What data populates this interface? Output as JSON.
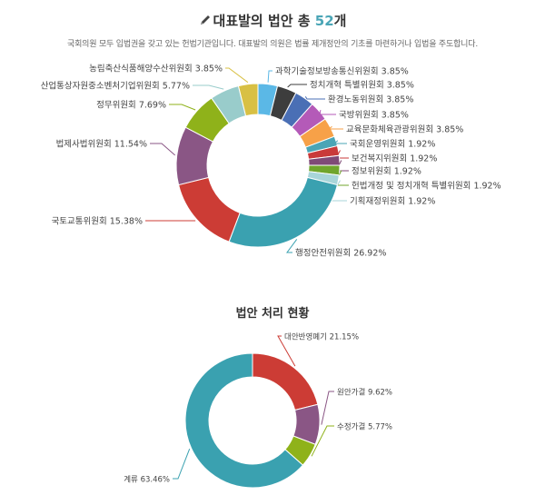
{
  "header": {
    "title_prefix": "대표발의 법안 총 ",
    "title_count": "52",
    "title_suffix": "개",
    "subtitle": "국회의원 모두 입법권을 갖고 있는 헌법기관입니다. 대표발의 의원은 법률 제개정안의 기초를 마련하거나 입법을 주도합니다.",
    "icon": "pencil-icon"
  },
  "chart_data": [
    {
      "type": "pie",
      "categories": [
        "과학기술정보방송통신위원회",
        "정치개혁 특별위원회",
        "환경노동위원회",
        "국방위원회",
        "교육문화체육관광위원회",
        "국회운영위원회",
        "보건복지위원회",
        "정보위원회",
        "헌법개정 및 정치개혁 특별위원회",
        "기획재정위원회",
        "행정안전위원회",
        "국토교통위원회",
        "법제사법위원회",
        "정무위원회",
        "산업통상자원중소벤처기업위원회",
        "농림축산식품해양수산위원회"
      ],
      "values": [
        3.85,
        3.85,
        3.85,
        3.85,
        3.85,
        1.92,
        1.92,
        1.92,
        1.92,
        1.92,
        26.92,
        15.38,
        11.54,
        7.69,
        5.77,
        3.85
      ],
      "labels": [
        "과학기술정보방송통신위원회 3.85%",
        "정치개혁 특별위원회 3.85%",
        "환경노동위원회 3.85%",
        "국방위원회 3.85%",
        "교육문화체육관광위원회 3.85%",
        "국회운영위원회 1.92%",
        "보건복지위원회 1.92%",
        "정보위원회 1.92%",
        "헌법개정 및 정치개혁 특별위원회 1.92%",
        "기획재정위원회 1.92%",
        "행정안전위원회 26.92%",
        "국토교통위원회 15.38%",
        "법제사법위원회 11.54%",
        "정무위원회 7.69%",
        "산업통상자원중소벤처기업위원회 5.77%",
        "농림축산식품해양수산위원회 3.85%"
      ],
      "colors": [
        "#5bb8e6",
        "#3d3d3d",
        "#4a6fb5",
        "#b45ab8",
        "#f7a148",
        "#4aa5b6",
        "#c93a3a",
        "#7f4a77",
        "#70a52c",
        "#a8d5d9",
        "#3aa1b0",
        "#cc3c35",
        "#8a5685",
        "#8fb21a",
        "#99cccb",
        "#d8c044"
      ],
      "title": "대표발의 법안 총 52개"
    },
    {
      "type": "pie",
      "title": "법안 처리 현황",
      "categories": [
        "대안반영폐기",
        "원안가결",
        "수정가결",
        "계류"
      ],
      "values": [
        21.15,
        9.62,
        5.77,
        63.46
      ],
      "labels": [
        "대안반영폐기 21.15%",
        "원안가결 9.62%",
        "수정가결 5.77%",
        "계류 63.46%"
      ],
      "colors": [
        "#cc3c35",
        "#8a5685",
        "#8fb21a",
        "#3aa1b0"
      ]
    }
  ]
}
